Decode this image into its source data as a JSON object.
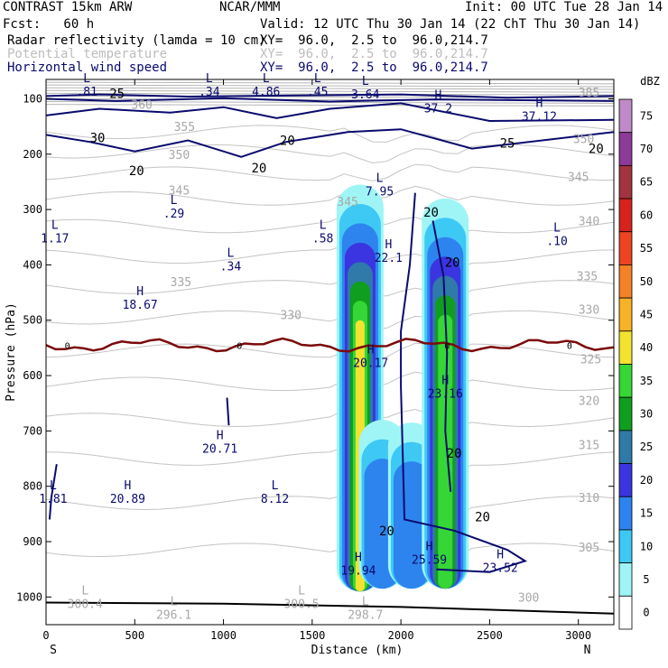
{
  "header": {
    "line1_left": "CONTRAST 15km ARW",
    "line1_mid": "NCAR/MMM",
    "line1_right": "Init: 00 UTC Tue 28 Jan 14",
    "line2_left": "Fcst:   60 h",
    "line2_right": "Valid: 12 UTC Thu 30 Jan 14 (22 ChT Thu 30 Jan 14)",
    "fields": [
      {
        "name": "Radar reflectivity (lamda = 10 cm)",
        "xy": "XY=  96.0,  2.5 to  96.0,214.7",
        "color": "#000000"
      },
      {
        "name": "Potential temperature",
        "xy": "XY=  96.0,  2.5 to  96.0,214.7",
        "color": "#bdbdbd"
      },
      {
        "name": "Horizontal wind speed",
        "xy": "XY=  96.0,  2.5 to  96.0,214.7",
        "color": "#0a0a6e"
      }
    ]
  },
  "chart_data": {
    "type": "heatmap",
    "xlabel": "Distance (km)",
    "ylabel": "Pressure (hPa)",
    "xlim": [
      0,
      3200
    ],
    "ylim": [
      1050,
      65
    ],
    "xticks": [
      0,
      500,
      1000,
      1500,
      2000,
      2500,
      3000
    ],
    "yticks": [
      100,
      200,
      300,
      400,
      500,
      600,
      700,
      800,
      900,
      1000
    ],
    "x_end_labels": {
      "left": "S",
      "right": "N"
    },
    "colorbar": {
      "unit": "dBZ",
      "levels": [
        0,
        5,
        10,
        15,
        20,
        25,
        30,
        35,
        40,
        45,
        50,
        55,
        60,
        65,
        70,
        75
      ],
      "colors": [
        "#ffffff",
        "#9ff5f5",
        "#3ec9f5",
        "#2d84ee",
        "#3a35e0",
        "#2f7aa8",
        "#0f9e1e",
        "#37d637",
        "#f3e230",
        "#f7b227",
        "#f38126",
        "#ee4422",
        "#d6231c",
        "#a2343f",
        "#8e3a9a",
        "#c08ac8"
      ]
    },
    "reflectivity_cores": [
      {
        "x": 1770,
        "p_top": 255,
        "p_bot": 990,
        "max_dbz": 40
      },
      {
        "x": 1895,
        "p_top": 680,
        "p_bot": 985,
        "max_dbz": 15
      },
      {
        "x": 2060,
        "p_top": 685,
        "p_bot": 985,
        "max_dbz": 15
      },
      {
        "x": 2250,
        "p_top": 280,
        "p_bot": 985,
        "max_dbz": 35
      }
    ],
    "theta_labels": [
      {
        "v": "385",
        "x": 3060,
        "p": 88
      },
      {
        "v": "360",
        "x": 540,
        "p": 110
      },
      {
        "v": "355",
        "x": 780,
        "p": 150
      },
      {
        "v": "350",
        "x": 750,
        "p": 200
      },
      {
        "v": "350",
        "x": 3030,
        "p": 172
      },
      {
        "v": "345",
        "x": 3000,
        "p": 240
      },
      {
        "v": "345",
        "x": 750,
        "p": 265
      },
      {
        "v": "345",
        "x": 1700,
        "p": 285
      },
      {
        "v": "340",
        "x": 3060,
        "p": 320
      },
      {
        "v": "335",
        "x": 3050,
        "p": 420
      },
      {
        "v": "335",
        "x": 760,
        "p": 430
      },
      {
        "v": "330",
        "x": 1380,
        "p": 490
      },
      {
        "v": "330",
        "x": 3060,
        "p": 480
      },
      {
        "v": "325",
        "x": 3070,
        "p": 570
      },
      {
        "v": "320",
        "x": 3060,
        "p": 645
      },
      {
        "v": "315",
        "x": 3060,
        "p": 725
      },
      {
        "v": "310",
        "x": 3060,
        "p": 820
      },
      {
        "v": "305",
        "x": 3060,
        "p": 910
      },
      {
        "v": "300",
        "x": 2720,
        "p": 1000
      }
    ],
    "wind_labels": [
      {
        "v": "25",
        "x": 400,
        "p": 90
      },
      {
        "v": "30",
        "x": 290,
        "p": 170
      },
      {
        "v": "20",
        "x": 510,
        "p": 230
      },
      {
        "v": "20",
        "x": 1200,
        "p": 225
      },
      {
        "v": "20",
        "x": 1360,
        "p": 175
      },
      {
        "v": "25",
        "x": 2600,
        "p": 180
      },
      {
        "v": "20",
        "x": 3100,
        "p": 190
      },
      {
        "v": "20",
        "x": 2170,
        "p": 305
      },
      {
        "v": "20",
        "x": 2290,
        "p": 395
      },
      {
        "v": "20",
        "x": 2300,
        "p": 740
      },
      {
        "v": "20",
        "x": 1920,
        "p": 880
      },
      {
        "v": "20",
        "x": 2460,
        "p": 855
      }
    ],
    "extrema": [
      {
        "t": "L",
        "v": ".81",
        "x": 230,
        "p": 75
      },
      {
        "t": "L",
        "v": ".34",
        "x": 920,
        "p": 75
      },
      {
        "t": "L",
        "v": "4.86",
        "x": 1240,
        "p": 75
      },
      {
        "t": "L",
        "v": ".45",
        "x": 1530,
        "p": 75
      },
      {
        "t": "L",
        "v": "3.64",
        "x": 1800,
        "p": 80
      },
      {
        "t": "H",
        "v": "37.2",
        "x": 2210,
        "p": 105
      },
      {
        "t": "H",
        "v": "37.12",
        "x": 2780,
        "p": 120
      },
      {
        "t": "L",
        "v": "7.95",
        "x": 1880,
        "p": 255
      },
      {
        "t": "L",
        "v": ".29",
        "x": 720,
        "p": 295
      },
      {
        "t": "L",
        "v": "1.17",
        "x": 50,
        "p": 340
      },
      {
        "t": "L",
        "v": ".58",
        "x": 1560,
        "p": 340
      },
      {
        "t": "H",
        "v": "22.1",
        "x": 1930,
        "p": 375
      },
      {
        "t": "L",
        "v": ".10",
        "x": 2880,
        "p": 345
      },
      {
        "t": "L",
        "v": ".34",
        "x": 1040,
        "p": 390
      },
      {
        "t": "H",
        "v": "18.67",
        "x": 530,
        "p": 460
      },
      {
        "t": "H",
        "v": "20.17",
        "x": 1830,
        "p": 565
      },
      {
        "t": "H",
        "v": "23.16",
        "x": 2250,
        "p": 620
      },
      {
        "t": "H",
        "v": "20.71",
        "x": 980,
        "p": 720
      },
      {
        "t": "L",
        "v": "1.81",
        "x": 40,
        "p": 810
      },
      {
        "t": "H",
        "v": "20.89",
        "x": 460,
        "p": 810
      },
      {
        "t": "L",
        "v": "8.12",
        "x": 1290,
        "p": 810
      },
      {
        "t": "H",
        "v": "19.94",
        "x": 1760,
        "p": 940
      },
      {
        "t": "H",
        "v": "25.59",
        "x": 2160,
        "p": 920
      },
      {
        "t": "H",
        "v": "23.52",
        "x": 2560,
        "p": 935
      },
      {
        "t": "L",
        "v": "300.4",
        "x": 220,
        "p": 1000
      },
      {
        "t": "L",
        "v": "300.5",
        "x": 1440,
        "p": 1000
      },
      {
        "t": "L",
        "v": "296.1",
        "x": 720,
        "p": 1020
      },
      {
        "t": "L",
        "v": "298.7",
        "x": 1800,
        "p": 1020
      }
    ],
    "freezing_level": {
      "label": "0",
      "p": 545
    },
    "freezing_labels": [
      {
        "v": "0",
        "x": 120
      },
      {
        "v": "0",
        "x": 1090
      },
      {
        "v": "0",
        "x": 2260
      },
      {
        "v": "0",
        "x": 2950
      }
    ]
  }
}
